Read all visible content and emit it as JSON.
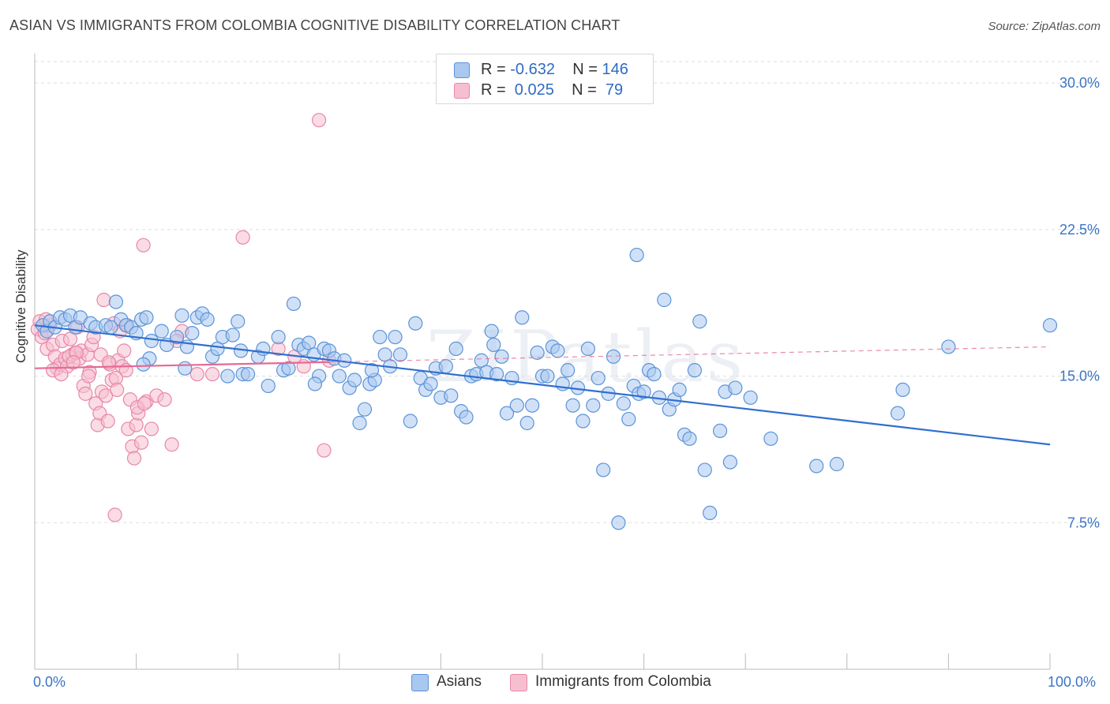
{
  "title": "ASIAN VS IMMIGRANTS FROM COLOMBIA COGNITIVE DISABILITY CORRELATION CHART",
  "source": "Source: ZipAtlas.com",
  "watermark": "ZIPatlas",
  "legend": {
    "rows": [
      {
        "r_label": "R = ",
        "r_value": "-0.632",
        "n_label": "N = ",
        "n_value": "146"
      },
      {
        "r_label": "R = ",
        "r_value": " 0.025",
        "n_label": "N = ",
        "n_value": " 79"
      }
    ]
  },
  "colors": {
    "asians_fill": "#a9c8f0",
    "asians_stroke": "#5b93d8",
    "asians_line": "#2f6fd0",
    "colombia_fill": "#f6bfd0",
    "colombia_stroke": "#e887a8",
    "colombia_line": "#e66a95",
    "grid": "#dddddd",
    "tick_label": "#3a74c4"
  },
  "chart_data": {
    "type": "scatter",
    "title": "ASIAN VS IMMIGRANTS FROM COLOMBIA COGNITIVE DISABILITY CORRELATION CHART",
    "xlabel": "",
    "ylabel": "Cognitive Disability",
    "xlim": [
      0,
      100
    ],
    "ylim": [
      0,
      31.5
    ],
    "x_tick_labels": [
      "0.0%",
      "100.0%"
    ],
    "y_ticks": [
      7.5,
      15.0,
      22.5,
      30.0
    ],
    "y_tick_labels": [
      "7.5%",
      "15.0%",
      "22.5%",
      "30.0%"
    ],
    "grid": true,
    "legend_position": "top-center",
    "series": [
      {
        "name": "Asians",
        "r": -0.632,
        "n": 146,
        "trend": {
          "x": [
            0,
            100
          ],
          "y": [
            17.6,
            11.5
          ],
          "dashed_from": null
        },
        "points": [
          [
            0.8,
            17.6
          ],
          [
            1.2,
            17.3
          ],
          [
            1.5,
            17.8
          ],
          [
            2.0,
            17.5
          ],
          [
            2.5,
            18.0
          ],
          [
            3.0,
            17.9
          ],
          [
            3.5,
            18.1
          ],
          [
            4.0,
            17.5
          ],
          [
            4.5,
            18.0
          ],
          [
            5.5,
            17.7
          ],
          [
            6.0,
            17.5
          ],
          [
            7.0,
            17.6
          ],
          [
            7.5,
            17.5
          ],
          [
            8.0,
            18.8
          ],
          [
            8.5,
            17.9
          ],
          [
            9.0,
            17.6
          ],
          [
            9.5,
            17.5
          ],
          [
            10.0,
            17.2
          ],
          [
            10.5,
            17.9
          ],
          [
            11.0,
            18.0
          ],
          [
            11.5,
            16.8
          ],
          [
            11.3,
            15.9
          ],
          [
            12.5,
            17.3
          ],
          [
            13.0,
            16.6
          ],
          [
            14.0,
            17.0
          ],
          [
            14.5,
            18.1
          ],
          [
            15.0,
            16.5
          ],
          [
            15.5,
            17.2
          ],
          [
            16.0,
            18.0
          ],
          [
            16.5,
            18.2
          ],
          [
            17.0,
            17.9
          ],
          [
            17.5,
            16.0
          ],
          [
            18.0,
            16.4
          ],
          [
            18.5,
            17.0
          ],
          [
            19.0,
            15.0
          ],
          [
            19.5,
            17.1
          ],
          [
            20.0,
            17.8
          ],
          [
            20.5,
            15.1
          ],
          [
            21.0,
            15.1
          ],
          [
            22.0,
            16.0
          ],
          [
            22.5,
            16.4
          ],
          [
            23.0,
            14.5
          ],
          [
            24.0,
            17.0
          ],
          [
            24.5,
            15.3
          ],
          [
            25.0,
            15.4
          ],
          [
            25.5,
            18.7
          ],
          [
            26.0,
            16.6
          ],
          [
            26.5,
            16.4
          ],
          [
            27.0,
            16.7
          ],
          [
            27.5,
            16.1
          ],
          [
            28.0,
            15.0
          ],
          [
            28.5,
            16.4
          ],
          [
            29.0,
            16.3
          ],
          [
            29.5,
            15.9
          ],
          [
            30.0,
            15.0
          ],
          [
            30.5,
            15.8
          ],
          [
            31.0,
            14.4
          ],
          [
            31.5,
            14.8
          ],
          [
            32.0,
            12.6
          ],
          [
            32.5,
            13.3
          ],
          [
            33.0,
            14.6
          ],
          [
            33.5,
            14.8
          ],
          [
            34.0,
            17.0
          ],
          [
            34.5,
            16.1
          ],
          [
            35.0,
            15.5
          ],
          [
            35.5,
            17.0
          ],
          [
            36.0,
            16.1
          ],
          [
            37.0,
            12.7
          ],
          [
            37.5,
            17.7
          ],
          [
            38.0,
            14.9
          ],
          [
            38.5,
            14.3
          ],
          [
            39.0,
            14.6
          ],
          [
            39.5,
            15.4
          ],
          [
            40.0,
            13.9
          ],
          [
            40.5,
            15.5
          ],
          [
            41.0,
            14.0
          ],
          [
            41.5,
            16.4
          ],
          [
            42.0,
            13.2
          ],
          [
            42.5,
            12.9
          ],
          [
            43.0,
            15.0
          ],
          [
            43.5,
            15.1
          ],
          [
            44.0,
            15.8
          ],
          [
            44.5,
            15.2
          ],
          [
            45.0,
            17.3
          ],
          [
            45.5,
            15.1
          ],
          [
            46.0,
            16.0
          ],
          [
            46.5,
            13.1
          ],
          [
            47.0,
            14.9
          ],
          [
            47.5,
            13.5
          ],
          [
            48.0,
            18.0
          ],
          [
            48.5,
            12.6
          ],
          [
            49.0,
            13.5
          ],
          [
            49.5,
            16.2
          ],
          [
            50.0,
            15.0
          ],
          [
            50.5,
            15.0
          ],
          [
            51.0,
            16.5
          ],
          [
            51.5,
            16.3
          ],
          [
            52.0,
            14.6
          ],
          [
            52.5,
            15.3
          ],
          [
            53.0,
            13.5
          ],
          [
            53.5,
            14.4
          ],
          [
            54.0,
            12.7
          ],
          [
            54.5,
            16.4
          ],
          [
            55.0,
            13.5
          ],
          [
            55.5,
            14.9
          ],
          [
            56.0,
            10.2
          ],
          [
            56.5,
            14.1
          ],
          [
            57.0,
            16.0
          ],
          [
            57.5,
            7.5
          ],
          [
            58.0,
            13.6
          ],
          [
            58.5,
            12.8
          ],
          [
            59.0,
            14.5
          ],
          [
            59.5,
            14.1
          ],
          [
            60.0,
            14.2
          ],
          [
            60.5,
            15.3
          ],
          [
            61.0,
            15.1
          ],
          [
            61.5,
            13.9
          ],
          [
            62.0,
            18.9
          ],
          [
            62.5,
            13.3
          ],
          [
            63.0,
            13.8
          ],
          [
            63.5,
            14.3
          ],
          [
            64.0,
            12.0
          ],
          [
            64.5,
            11.8
          ],
          [
            65.0,
            15.3
          ],
          [
            65.5,
            17.8
          ],
          [
            66.0,
            10.2
          ],
          [
            66.5,
            8.0
          ],
          [
            67.5,
            12.2
          ],
          [
            68.0,
            14.2
          ],
          [
            68.5,
            10.6
          ],
          [
            69.0,
            14.4
          ],
          [
            70.5,
            13.9
          ],
          [
            72.5,
            11.8
          ],
          [
            77.0,
            10.4
          ],
          [
            79.0,
            10.5
          ],
          [
            85.0,
            13.1
          ],
          [
            85.5,
            14.3
          ],
          [
            100.0,
            17.6
          ],
          [
            90.0,
            16.5
          ],
          [
            59.3,
            21.2
          ],
          [
            45.2,
            16.6
          ],
          [
            33.2,
            15.3
          ],
          [
            27.6,
            14.6
          ],
          [
            20.3,
            16.3
          ],
          [
            14.8,
            15.4
          ],
          [
            10.7,
            15.6
          ]
        ]
      },
      {
        "name": "Immigrants from Colombia",
        "r": 0.025,
        "n": 79,
        "trend": {
          "x": [
            0,
            100
          ],
          "y": [
            15.4,
            16.5
          ],
          "dashed_from": 29
        },
        "points": [
          [
            0.3,
            17.4
          ],
          [
            0.5,
            17.8
          ],
          [
            0.7,
            17.0
          ],
          [
            1.0,
            17.2
          ],
          [
            1.2,
            16.4
          ],
          [
            1.5,
            17.6
          ],
          [
            1.8,
            16.6
          ],
          [
            2.0,
            16.0
          ],
          [
            2.2,
            15.4
          ],
          [
            2.5,
            15.6
          ],
          [
            2.7,
            16.8
          ],
          [
            3.0,
            15.9
          ],
          [
            3.2,
            15.5
          ],
          [
            3.5,
            16.9
          ],
          [
            3.7,
            16.1
          ],
          [
            4.0,
            16.2
          ],
          [
            4.2,
            17.5
          ],
          [
            4.4,
            15.9
          ],
          [
            4.6,
            16.3
          ],
          [
            4.8,
            14.5
          ],
          [
            5.0,
            14.1
          ],
          [
            5.2,
            16.1
          ],
          [
            5.4,
            15.2
          ],
          [
            5.6,
            16.6
          ],
          [
            5.8,
            17.0
          ],
          [
            6.0,
            13.6
          ],
          [
            6.2,
            12.5
          ],
          [
            6.4,
            13.1
          ],
          [
            6.6,
            14.2
          ],
          [
            6.8,
            18.9
          ],
          [
            7.0,
            14.0
          ],
          [
            7.2,
            12.7
          ],
          [
            7.4,
            15.6
          ],
          [
            7.6,
            14.8
          ],
          [
            7.8,
            17.7
          ],
          [
            8.0,
            14.9
          ],
          [
            8.2,
            15.8
          ],
          [
            8.4,
            17.3
          ],
          [
            8.6,
            15.5
          ],
          [
            8.8,
            16.3
          ],
          [
            9.0,
            15.3
          ],
          [
            9.2,
            12.3
          ],
          [
            9.4,
            13.8
          ],
          [
            9.6,
            11.4
          ],
          [
            9.8,
            10.8
          ],
          [
            10.0,
            12.5
          ],
          [
            10.2,
            13.1
          ],
          [
            10.5,
            11.6
          ],
          [
            10.7,
            21.7
          ],
          [
            11.0,
            13.7
          ],
          [
            11.5,
            12.3
          ],
          [
            12.0,
            14.0
          ],
          [
            13.5,
            11.5
          ],
          [
            14.5,
            17.3
          ],
          [
            16.0,
            15.1
          ],
          [
            17.5,
            15.1
          ],
          [
            20.5,
            22.1
          ],
          [
            26.5,
            15.5
          ],
          [
            28.0,
            28.1
          ],
          [
            28.5,
            11.2
          ],
          [
            1.8,
            15.3
          ],
          [
            2.6,
            15.1
          ],
          [
            3.4,
            16.0
          ],
          [
            4.1,
            16.2
          ],
          [
            5.3,
            15.0
          ],
          [
            6.5,
            16.1
          ],
          [
            7.3,
            15.7
          ],
          [
            8.1,
            14.3
          ],
          [
            9.1,
            17.6
          ],
          [
            10.1,
            13.4
          ],
          [
            10.8,
            13.6
          ],
          [
            12.8,
            13.8
          ],
          [
            14.0,
            16.8
          ],
          [
            24.0,
            16.4
          ],
          [
            25.6,
            16.0
          ],
          [
            29.0,
            15.8
          ],
          [
            1.1,
            17.9
          ],
          [
            3.8,
            15.7
          ],
          [
            7.9,
            7.9
          ]
        ]
      }
    ]
  },
  "bottom_legend": [
    {
      "label": "Asians"
    },
    {
      "label": "Immigrants from Colombia"
    }
  ]
}
